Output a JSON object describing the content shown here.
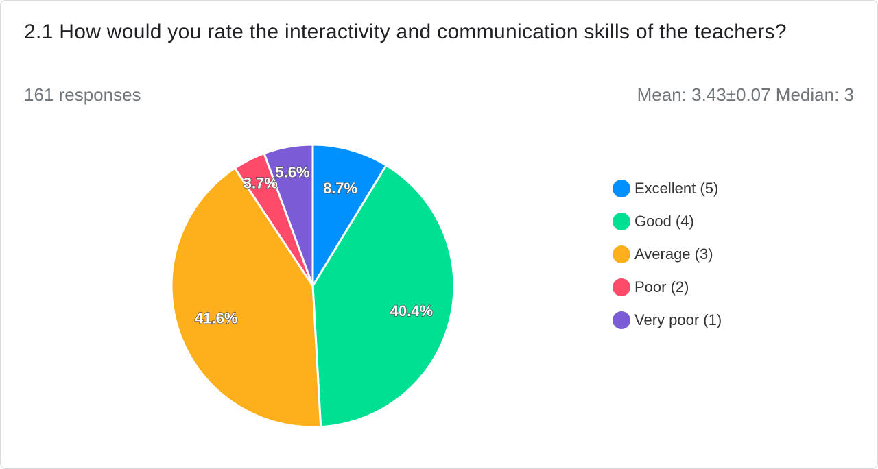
{
  "header": {
    "title": "2.1  How would you rate the interactivity and communication skills of the teachers?",
    "responses": "161 responses",
    "stats": "Mean: 3.43±0.07 Median: 3"
  },
  "chart_data": {
    "type": "pie",
    "slices": [
      {
        "label": "Excellent (5)",
        "value": 8.7,
        "display": "8.7%",
        "color": "#0090ff"
      },
      {
        "label": "Good (4)",
        "value": 40.4,
        "display": "40.4%",
        "color": "#00e093"
      },
      {
        "label": "Average (3)",
        "value": 41.6,
        "display": "41.6%",
        "color": "#fdb01c"
      },
      {
        "label": "Poor (2)",
        "value": 3.7,
        "display": "3.7%",
        "color": "#ff4a69"
      },
      {
        "label": "Very poor (1)",
        "value": 5.6,
        "display": "5.6%",
        "color": "#7b5cd6"
      }
    ],
    "legend_position": "right"
  }
}
